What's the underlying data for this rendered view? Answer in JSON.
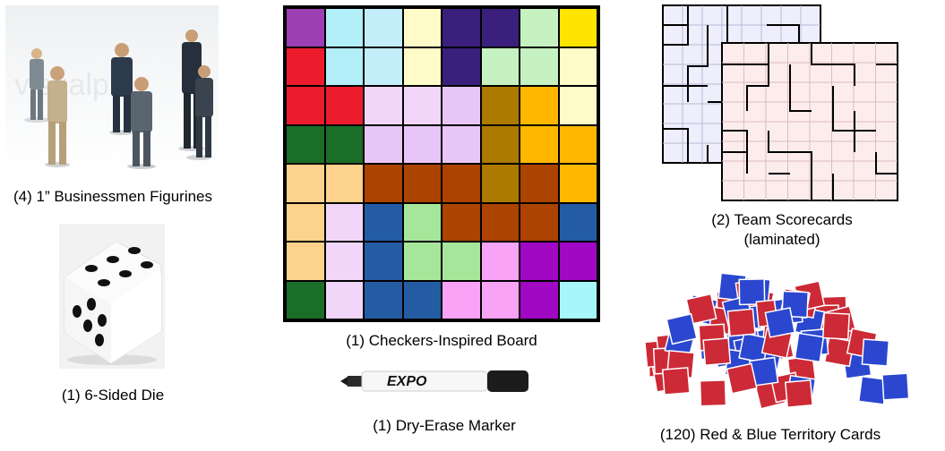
{
  "captions": {
    "figurines": "(4) 1” Businessmen Figurines",
    "die": "(1) 6-Sided Die",
    "board": "(1) Checkers-Inspired Board",
    "marker": "(1) Dry-Erase Marker",
    "scorecards_line1": "(2) Team Scorecards",
    "scorecards_line2": "(laminated)",
    "cards": "(120) Red & Blue Territory Cards"
  },
  "photo_watermark": "visualph",
  "marker_brand": "EXPO",
  "board_colors": [
    [
      "#9b3fb3",
      "#b3eff8",
      "#c3eef9",
      "#fefbc9",
      "#3a1f7c",
      "#3a1f7c",
      "#c6f1c0",
      "#ffe400"
    ],
    [
      "#ec1c2c",
      "#b3eff8",
      "#c3eef9",
      "#fefbc9",
      "#3a1f7c",
      "#c6f1c0",
      "#c6f1c0",
      "#fefbc9"
    ],
    [
      "#ec1c2c",
      "#ec1c2c",
      "#f1d6f9",
      "#f1d6f9",
      "#e7c6f7",
      "#ad7a00",
      "#ffb700",
      "#fefbc9"
    ],
    [
      "#1b6e28",
      "#1b6e28",
      "#e7c6f7",
      "#e7c6f7",
      "#e7c6f7",
      "#ad7a00",
      "#ffb700",
      "#ffb700"
    ],
    [
      "#fdd28c",
      "#fdd28c",
      "#ad4300",
      "#ad4300",
      "#ad4300",
      "#ad7a00",
      "#ad4300",
      "#ffb700"
    ],
    [
      "#fdd28c",
      "#f1d6f9",
      "#245ca4",
      "#a6e69a",
      "#ad4300",
      "#ad4300",
      "#ad4300",
      "#245ca4"
    ],
    [
      "#fdd28c",
      "#f1d6f9",
      "#245ca4",
      "#a6e69a",
      "#a6e69a",
      "#f8a3f6",
      "#a008c4",
      "#a008c4"
    ],
    [
      "#1b6e28",
      "#f1d6f9",
      "#245ca4",
      "#245ca4",
      "#f8a3f6",
      "#f8a3f6",
      "#a008c4",
      "#a7f6f9"
    ]
  ],
  "card_colors": {
    "red": "#cc2a36",
    "blue": "#2b47cf"
  }
}
